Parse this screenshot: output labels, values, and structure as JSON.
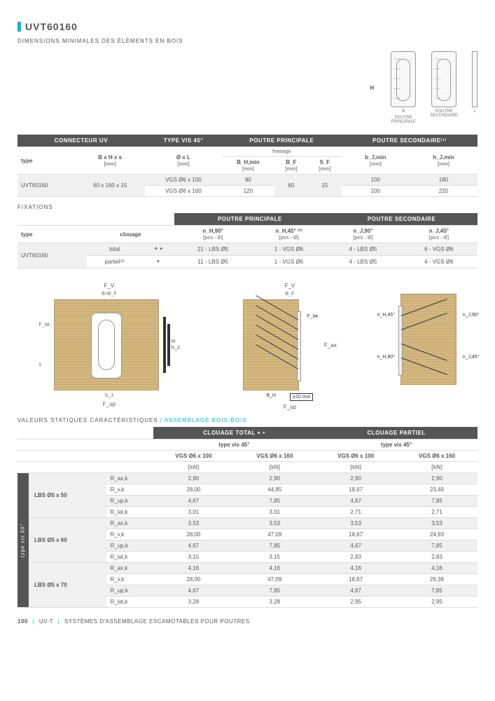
{
  "title": "UVT60160",
  "subtitle": "DIMENSIONS MINIMALES DES ÉLÉMENTS EN BOIS",
  "topImages": {
    "hLabel": "H",
    "img1": {
      "letter": "B",
      "caption": "POUTRE\nPRINCIPALE"
    },
    "img2": {
      "letter": "",
      "caption": "POUTRE\nSECONDAIRE"
    },
    "img3": {
      "letter": "s",
      "caption": ""
    }
  },
  "table1": {
    "headers": {
      "h1": "CONNECTEUR UV",
      "h2": "TYPE VIS 45°",
      "h3": "POUTRE PRINCIPALE",
      "h4": "POUTRE SECONDAIRE⁽¹⁾",
      "sub3": "fraisage",
      "c1": "type",
      "c2": "B x H x s",
      "c2u": "[mm]",
      "c3": "Ø x L",
      "c3u": "[mm]",
      "c4": "B_H,min",
      "c4u": "[mm]",
      "c5": "B_F",
      "c5u": "[mm]",
      "c6": "S_F",
      "c6u": "[mm]",
      "c7": "b_J,min",
      "c7u": "[mm]",
      "c8": "h_J,min",
      "c8u": "[mm]"
    },
    "rows": [
      {
        "type": "UVT60160",
        "bhs": "60 x 160 x 15",
        "oxl": "VGS Ø6 x 100",
        "bhmin": "80",
        "bf": "60",
        "sf": "15",
        "bjmin": "100",
        "hjmin": "180",
        "gray": true
      },
      {
        "type": "",
        "bhs": "",
        "oxl": "VGS Ø6 x 160",
        "bhmin": "120",
        "bf": "",
        "sf": "",
        "bjmin": "100",
        "hjmin": "220",
        "gray": false
      }
    ]
  },
  "fixationsTitle": "FIXATIONS",
  "table2": {
    "headers": {
      "h3": "POUTRE PRINCIPALE",
      "h4": "POUTRE SECONDAIRE",
      "c1": "type",
      "c2": "clouage",
      "c3": "n_H,90°",
      "c3u": "[pcs - Ø]",
      "c4": "n_H,45° ⁽³⁾",
      "c4u": "[pcs - Ø]",
      "c5": "n_J,90°",
      "c5u": "[pcs - Ø]",
      "c6": "n_J,45°",
      "c6u": "[pcs - Ø]"
    },
    "rows": [
      {
        "type": "UVT60160",
        "clouage": "total",
        "sym": "+ •",
        "c3": "21 - LBS Ø5",
        "c4": "1 - VGS Ø6",
        "c5": "4 - LBS Ø5",
        "c6": "6 - VGS Ø6",
        "gray": true
      },
      {
        "type": "",
        "clouage": "partiel⁽²⁾",
        "sym": "•",
        "c3": "11 - LBS Ø5",
        "c4": "1 - VGS Ø6",
        "c5": "4 - LBS Ø5",
        "c6": "4 - VGS Ø6",
        "gray": false
      }
    ]
  },
  "diagrams": {
    "fv": "F_V",
    "fup": "F_up",
    "flat": "F_lat",
    "fax": "F_ax",
    "bbf": "B=B_F",
    "bf": "B_F",
    "bj": "b_J",
    "bh": "B_H",
    "s": "s",
    "H": "H",
    "hj": "h_J",
    "ten": "≥10 mm",
    "nh45": "n_H,45°",
    "nh90": "n_H,90°",
    "nj45": "n_J,45°",
    "nj90": "n_J,90°"
  },
  "valuesTitle1": "VALEURS STATIQUES CARACTÉRISTIQUES",
  "valuesTitle2": " | ASSEMBLAGE BOIS-BOIS",
  "staticTable": {
    "headers": {
      "g1": "CLOUAGE TOTAL   + •",
      "g2": "CLOUAGE PARTIEL",
      "sub": "type vis 45°",
      "c1": "VGS Ø6 x 100",
      "c2": "VGS Ø6 x 160",
      "c3": "VGS Ø6 x 100",
      "c4": "VGS Ø6 x 160",
      "unit": "[kN]"
    },
    "rotateLabel": "type vis 90°",
    "groups": [
      {
        "name": "LBS Ø5 x 50",
        "rows": [
          {
            "label": "R_ax,k",
            "v": [
              "2,90",
              "2,90",
              "2,90",
              "2,90"
            ],
            "gray": true
          },
          {
            "label": "R_v,k",
            "v": [
              "28,00",
              "44,85",
              "18,67",
              "23,49"
            ],
            "gray": false
          },
          {
            "label": "R_up,k",
            "v": [
              "4,67",
              "7,85",
              "4,67",
              "7,85"
            ],
            "gray": true
          },
          {
            "label": "R_lat,k",
            "v": [
              "3,01",
              "3,01",
              "2,71",
              "2,71"
            ],
            "gray": false
          }
        ]
      },
      {
        "name": "LBS Ø5 x 60",
        "rows": [
          {
            "label": "R_ax,k",
            "v": [
              "3,53",
              "3,53",
              "3,53",
              "3,53"
            ],
            "gray": true
          },
          {
            "label": "R_v,k",
            "v": [
              "28,00",
              "47,09",
              "18,67",
              "24,93"
            ],
            "gray": false
          },
          {
            "label": "R_up,k",
            "v": [
              "4,67",
              "7,85",
              "4,67",
              "7,85"
            ],
            "gray": true
          },
          {
            "label": "R_lat,k",
            "v": [
              "3,15",
              "3,15",
              "2,83",
              "2,83"
            ],
            "gray": false
          }
        ]
      },
      {
        "name": "LBS Ø5 x 70",
        "rows": [
          {
            "label": "R_ax,k",
            "v": [
              "4,16",
              "4,16",
              "4,16",
              "4,16"
            ],
            "gray": true
          },
          {
            "label": "R_v,k",
            "v": [
              "28,00",
              "47,09",
              "18,67",
              "26,38"
            ],
            "gray": false
          },
          {
            "label": "R_up,k",
            "v": [
              "4,67",
              "7,85",
              "4,67",
              "7,85"
            ],
            "gray": true
          },
          {
            "label": "R_lat,k",
            "v": [
              "3,28",
              "3,28",
              "2,95",
              "2,95"
            ],
            "gray": false
          }
        ]
      }
    ]
  },
  "footer": {
    "page": "100",
    "series": "UV-T",
    "desc": "SYSTÈMES D'ASSEMBLAGE ESCAMOTABLES POUR POUTRES"
  }
}
